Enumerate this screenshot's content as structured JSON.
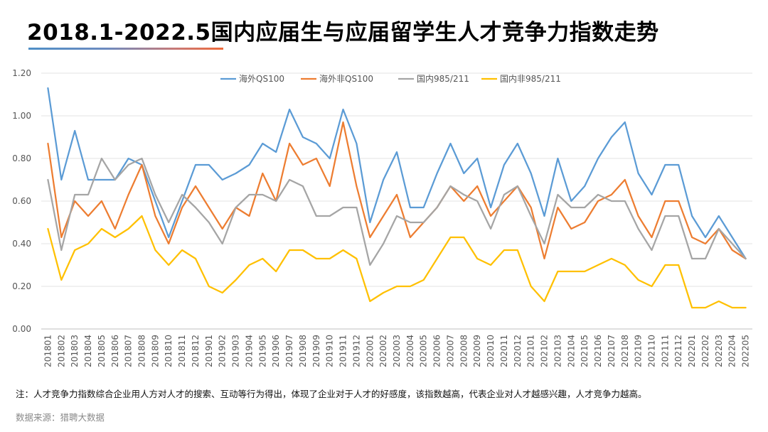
{
  "title": "2018.1-2022.5国内应届生与应届留学生人才竞争力指数走势",
  "note": "注：人才竞争力指数综合企业用人方对人才的搜索、互动等行为得出，体现了企业对于人才的好感度，该指数越高，代表企业对人才越感兴趣，人才竞争力越高。",
  "source": "数据来源：猎聘大数据",
  "chart_data": {
    "type": "line",
    "legend_position": "top",
    "grid": true,
    "ylim": [
      0,
      1.2
    ],
    "yticks": [
      "0.00",
      "0.20",
      "0.40",
      "0.60",
      "0.80",
      "1.00",
      "1.20"
    ],
    "categories": [
      "201801",
      "201802",
      "201803",
      "201804",
      "201805",
      "201806",
      "201807",
      "201808",
      "201809",
      "201810",
      "201811",
      "201812",
      "201901",
      "201902",
      "201903",
      "201904",
      "201905",
      "201906",
      "201907",
      "201908",
      "201909",
      "201910",
      "201911",
      "201912",
      "202001",
      "202002",
      "202003",
      "202004",
      "202005",
      "202006",
      "202007",
      "202008",
      "202009",
      "202010",
      "202011",
      "202012",
      "202101",
      "202102",
      "202103",
      "202104",
      "202105",
      "202106",
      "202107",
      "202108",
      "202109",
      "202110",
      "202111",
      "202112",
      "202201",
      "202202",
      "202203",
      "202204",
      "202205"
    ],
    "series": [
      {
        "name": "海外QS100",
        "color": "#5b9bd5",
        "values": [
          1.13,
          0.7,
          0.93,
          0.7,
          0.7,
          0.7,
          0.8,
          0.77,
          0.6,
          0.43,
          0.6,
          0.77,
          0.77,
          0.7,
          0.73,
          0.77,
          0.87,
          0.83,
          1.03,
          0.9,
          0.87,
          0.8,
          1.03,
          0.87,
          0.5,
          0.7,
          0.83,
          0.57,
          0.57,
          0.73,
          0.87,
          0.73,
          0.8,
          0.57,
          0.77,
          0.87,
          0.73,
          0.53,
          0.8,
          0.6,
          0.67,
          0.8,
          0.9,
          0.97,
          0.73,
          0.63,
          0.77,
          0.77,
          0.53,
          0.43,
          0.53,
          0.43,
          0.33
        ]
      },
      {
        "name": "海外非QS100",
        "color": "#ed7d31",
        "values": [
          0.87,
          0.43,
          0.6,
          0.53,
          0.6,
          0.47,
          0.63,
          0.77,
          0.53,
          0.4,
          0.57,
          0.67,
          0.57,
          0.47,
          0.57,
          0.53,
          0.73,
          0.6,
          0.87,
          0.77,
          0.8,
          0.67,
          0.97,
          0.67,
          0.43,
          0.53,
          0.63,
          0.43,
          0.5,
          0.57,
          0.67,
          0.6,
          0.67,
          0.53,
          0.6,
          0.67,
          0.57,
          0.33,
          0.57,
          0.47,
          0.5,
          0.6,
          0.63,
          0.7,
          0.53,
          0.43,
          0.6,
          0.6,
          0.43,
          0.4,
          0.47,
          0.37,
          0.33
        ]
      },
      {
        "name": "国内985/211",
        "color": "#a5a5a5",
        "values": [
          0.7,
          0.37,
          0.63,
          0.63,
          0.8,
          0.7,
          0.77,
          0.8,
          0.63,
          0.5,
          0.63,
          0.57,
          0.5,
          0.4,
          0.57,
          0.63,
          0.63,
          0.6,
          0.7,
          0.67,
          0.53,
          0.53,
          0.57,
          0.57,
          0.3,
          0.4,
          0.53,
          0.5,
          0.5,
          0.57,
          0.67,
          0.63,
          0.6,
          0.47,
          0.63,
          0.67,
          0.53,
          0.4,
          0.63,
          0.57,
          0.57,
          0.63,
          0.6,
          0.6,
          0.47,
          0.37,
          0.53,
          0.53,
          0.33,
          0.33,
          0.47,
          0.4,
          0.33
        ]
      },
      {
        "name": "国内非985/211",
        "color": "#ffc000",
        "values": [
          0.47,
          0.23,
          0.37,
          0.4,
          0.47,
          0.43,
          0.47,
          0.53,
          0.37,
          0.3,
          0.37,
          0.33,
          0.2,
          0.17,
          0.23,
          0.3,
          0.33,
          0.27,
          0.37,
          0.37,
          0.33,
          0.33,
          0.37,
          0.33,
          0.13,
          0.17,
          0.2,
          0.2,
          0.23,
          0.33,
          0.43,
          0.43,
          0.33,
          0.3,
          0.37,
          0.37,
          0.2,
          0.13,
          0.27,
          0.27,
          0.27,
          0.3,
          0.33,
          0.3,
          0.23,
          0.2,
          0.3,
          0.3,
          0.1,
          0.1,
          0.13,
          0.1,
          0.1
        ]
      }
    ]
  }
}
